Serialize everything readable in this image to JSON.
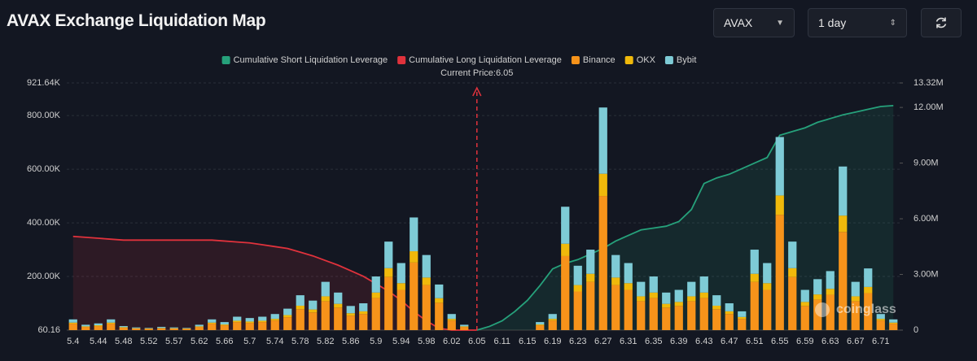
{
  "header": {
    "title": "AVAX Exchange Liquidation Map",
    "coin_select": "AVAX",
    "period_select": "1 day"
  },
  "chart_data": {
    "type": "liquidation-map",
    "watermark": "coinglass",
    "current_price": {
      "label": "Current Price:6.05",
      "category": "6.05"
    },
    "categories": [
      "5.4",
      null,
      "5.44",
      null,
      "5.48",
      null,
      "5.52",
      null,
      "5.57",
      null,
      "5.62",
      null,
      "5.66",
      null,
      "5.7",
      null,
      "5.74",
      null,
      "5.78",
      null,
      "5.82",
      null,
      "5.86",
      null,
      "5.9",
      null,
      "5.94",
      null,
      "5.98",
      null,
      "6.02",
      null,
      "6.05",
      null,
      "6.11",
      null,
      "6.15",
      null,
      "6.19",
      null,
      "6.23",
      null,
      "6.27",
      null,
      "6.31",
      null,
      "6.35",
      null,
      "6.39",
      null,
      "6.43",
      null,
      "6.47",
      null,
      "6.51",
      null,
      "6.55",
      null,
      "6.59",
      null,
      "6.63",
      null,
      "6.67",
      null,
      "6.71",
      null
    ],
    "ylim": [
      60.16,
      921640
    ],
    "yticks": [
      60.16,
      {
        "value": 200000,
        "label": "200.00K"
      },
      {
        "value": 400000,
        "label": "400.00K"
      },
      {
        "value": 600000,
        "label": "600.00K"
      },
      {
        "value": 800000,
        "label": "800.00K"
      },
      {
        "value": 921640,
        "label": "921.64K"
      }
    ],
    "y2lim": [
      0,
      13320000
    ],
    "y2ticks": [
      0,
      {
        "value": 3000000,
        "label": "3.00M"
      },
      {
        "value": 6000000,
        "label": "6.00M"
      },
      {
        "value": 9000000,
        "label": "9.00M"
      },
      {
        "value": 12000000,
        "label": "12.00M"
      },
      {
        "value": 13320000,
        "label": "13.32M"
      }
    ],
    "grid": true,
    "series": [
      {
        "name": "Cumulative Short Liquidation Leverage",
        "kind": "area",
        "axis": "y2",
        "color": "#26a17b",
        "values": [
          null,
          null,
          null,
          null,
          null,
          null,
          null,
          null,
          null,
          null,
          null,
          null,
          null,
          null,
          null,
          null,
          null,
          null,
          null,
          null,
          null,
          null,
          null,
          null,
          null,
          null,
          null,
          null,
          null,
          null,
          null,
          null,
          0,
          200000,
          500000,
          1000000,
          1600000,
          2400000,
          3300000,
          3600000,
          3800000,
          4100000,
          4400000,
          4800000,
          5100000,
          5400000,
          5500000,
          5600000,
          5850000,
          6500000,
          7900000,
          8200000,
          8400000,
          8700000,
          9000000,
          9300000,
          10500000,
          10700000,
          10900000,
          11200000,
          11400000,
          11600000,
          11750000,
          11900000,
          12050000,
          12100000
        ]
      },
      {
        "name": "Cumulative Long Liquidation Leverage",
        "kind": "area",
        "axis": "y2",
        "color": "#e0323c",
        "values": [
          5050000,
          5000000,
          4950000,
          4900000,
          4850000,
          4850000,
          4850000,
          4850000,
          4850000,
          4850000,
          4850000,
          4850000,
          4800000,
          4750000,
          4700000,
          4600000,
          4500000,
          4400000,
          4200000,
          4000000,
          3750000,
          3500000,
          3200000,
          2900000,
          2500000,
          2100000,
          1600000,
          1000000,
          500000,
          100000,
          0,
          0,
          0,
          null,
          null,
          null,
          null,
          null,
          null,
          null,
          null,
          null,
          null,
          null,
          null,
          null,
          null,
          null,
          null,
          null,
          null,
          null,
          null,
          null,
          null,
          null,
          null,
          null,
          null,
          null,
          null,
          null,
          null,
          null,
          null,
          null
        ]
      },
      {
        "name": "Binance",
        "kind": "bar",
        "color": "#f7931a",
        "values": [
          24000,
          12000,
          15000,
          24000,
          9000,
          6000,
          5000,
          7000,
          6000,
          5000,
          12000,
          24000,
          18000,
          30000,
          27000,
          30000,
          36000,
          48000,
          78000,
          66000,
          108000,
          84000,
          54000,
          60000,
          120000,
          198000,
          150000,
          252000,
          168000,
          102000,
          36000,
          12000,
          0,
          0,
          0,
          0,
          0,
          18000,
          36000,
          276000,
          144000,
          180000,
          500000,
          168000,
          150000,
          108000,
          120000,
          84000,
          90000,
          108000,
          120000,
          78000,
          60000,
          42000,
          180000,
          150000,
          430000,
          198000,
          90000,
          114000,
          132000,
          366000,
          108000,
          138000,
          36000,
          24000
        ]
      },
      {
        "name": "OKX",
        "kind": "bar",
        "color": "#f0b90b",
        "values": [
          4000,
          2000,
          3000,
          4000,
          2000,
          1000,
          1000,
          1000,
          1000,
          1000,
          2000,
          4000,
          3000,
          5000,
          5000,
          5000,
          6000,
          8000,
          13000,
          11000,
          18000,
          14000,
          9000,
          10000,
          20000,
          33000,
          25000,
          42000,
          28000,
          17000,
          6000,
          2000,
          0,
          0,
          0,
          0,
          0,
          3000,
          6000,
          46000,
          24000,
          30000,
          83000,
          28000,
          25000,
          18000,
          20000,
          14000,
          15000,
          18000,
          20000,
          13000,
          10000,
          7000,
          30000,
          25000,
          72000,
          33000,
          15000,
          19000,
          22000,
          61000,
          18000,
          23000,
          6000,
          4000
        ]
      },
      {
        "name": "Bybit",
        "kind": "bar",
        "color": "#7ecbd6",
        "values": [
          12000,
          6000,
          7000,
          12000,
          4000,
          3000,
          2000,
          4000,
          3000,
          2000,
          6000,
          12000,
          9000,
          15000,
          13000,
          15000,
          18000,
          24000,
          39000,
          33000,
          54000,
          42000,
          27000,
          30000,
          60000,
          99000,
          75000,
          126000,
          84000,
          51000,
          18000,
          6000,
          0,
          0,
          0,
          0,
          0,
          9000,
          18000,
          138000,
          72000,
          90000,
          247000,
          84000,
          75000,
          54000,
          60000,
          42000,
          45000,
          54000,
          60000,
          39000,
          30000,
          21000,
          90000,
          75000,
          218000,
          99000,
          45000,
          57000,
          66000,
          183000,
          54000,
          69000,
          18000,
          12000
        ]
      }
    ]
  }
}
